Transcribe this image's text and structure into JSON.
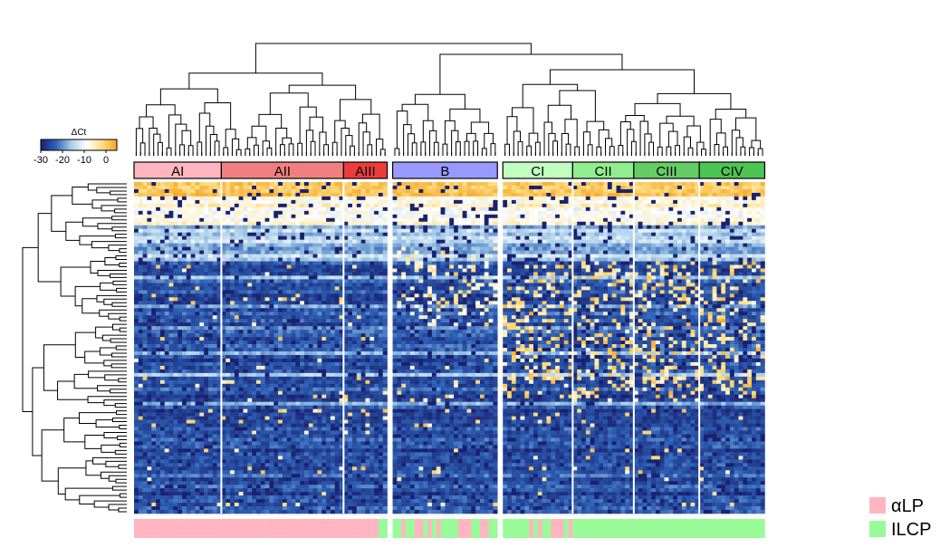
{
  "chart_data": {
    "type": "heatmap",
    "title": "",
    "xlabel": "",
    "ylabel": "",
    "colorbar": {
      "title": "ΔCt",
      "range": [
        -30,
        5
      ],
      "ticks": [
        -30,
        -20,
        -10,
        0
      ],
      "tick_labels": [
        "-30",
        "-20",
        "-10",
        "0"
      ],
      "colors": [
        "#1a2170",
        "#2f63b8",
        "#a9cde8",
        "#ffffff",
        "#ffe08a",
        "#f5a623"
      ]
    },
    "column_clusters": [
      {
        "label": "AI",
        "cells": 20,
        "color": "#ffb6c1"
      },
      {
        "label": "AII",
        "cells": 28,
        "color": "#f08080"
      },
      {
        "label": "AIII",
        "cells": 10,
        "color": "#ee3b3b"
      },
      {
        "label": "B",
        "cells": 24,
        "color": "#9999ff"
      },
      {
        "label": "CI",
        "cells": 16,
        "color": "#c1ffc1"
      },
      {
        "label": "CII",
        "cells": 14,
        "color": "#90ee90"
      },
      {
        "label": "CIII",
        "cells": 15,
        "color": "#66cd66"
      },
      {
        "label": "CIV",
        "cells": 15,
        "color": "#4cc552"
      }
    ],
    "column_gaps_after": [
      2,
      3
    ],
    "n_genes": 92,
    "cell_type_legend": [
      {
        "label": "αLP",
        "color": "#ffb6c1"
      },
      {
        "label": "ILCP",
        "color": "#98fb98"
      }
    ]
  }
}
